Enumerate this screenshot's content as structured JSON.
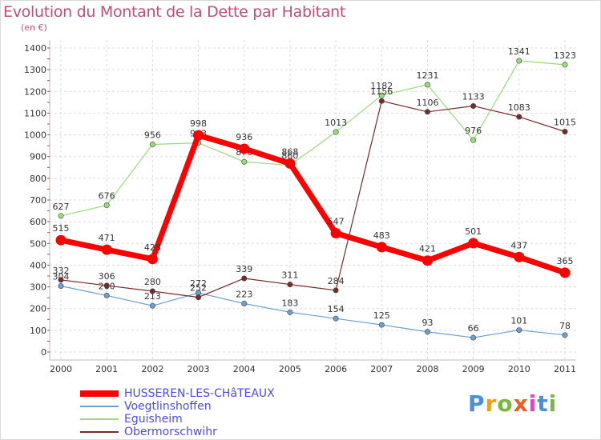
{
  "header": {
    "title": "Evolution du Montant de la Dette par Habitant",
    "unit": "(en €)"
  },
  "logo": {
    "text": "Proxiti",
    "letter_colors": [
      "#4a90d9",
      "#e8a21c",
      "#7ab83a",
      "#e85d2a",
      "#d94ab8",
      "#4a90d9",
      "#7ab83a"
    ]
  },
  "chart_data": {
    "type": "line",
    "title": "Evolution du Montant de la Dette par Habitant",
    "subtitle": "(en €)",
    "xlabel": "",
    "ylabel": "",
    "x": [
      "2000",
      "2001",
      "2002",
      "2003",
      "2004",
      "2005",
      "2006",
      "2007",
      "2008",
      "2009",
      "2010",
      "2011"
    ],
    "ylim": [
      0,
      1400
    ],
    "yticks": [
      0,
      100,
      200,
      300,
      400,
      500,
      600,
      700,
      800,
      900,
      1000,
      1100,
      1200,
      1300,
      1400
    ],
    "grid": true,
    "legend_position": "bottom-left",
    "series": [
      {
        "name": "HUSSEREN-LES-CHâTEAUX",
        "color": "#ff0000",
        "emphasis": true,
        "values": [
          515,
          471,
          428,
          998,
          936,
          868,
          547,
          483,
          421,
          501,
          437,
          365
        ]
      },
      {
        "name": "Voegtlinshoffen",
        "color": "#6a9fcf",
        "emphasis": false,
        "values": [
          304,
          260,
          213,
          272,
          223,
          183,
          154,
          125,
          93,
          66,
          101,
          78
        ]
      },
      {
        "name": "Eguisheim",
        "color": "#99dd77",
        "emphasis": false,
        "values": [
          627,
          676,
          956,
          963,
          876,
          860,
          1013,
          1182,
          1231,
          976,
          1341,
          1323
        ]
      },
      {
        "name": "Obermorschwihr",
        "color": "#7a2a2a",
        "emphasis": false,
        "values": [
          332,
          306,
          280,
          252,
          339,
          311,
          284,
          1156,
          1106,
          1133,
          1083,
          1015
        ]
      }
    ]
  }
}
